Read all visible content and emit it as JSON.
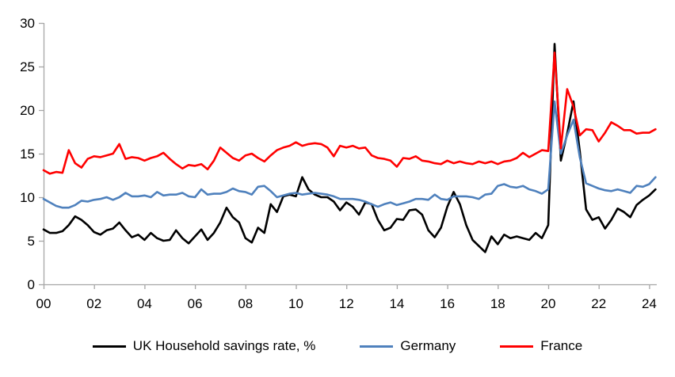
{
  "chart_data": {
    "type": "line",
    "title": "",
    "frequency": "quarterly",
    "start_period": "2000 Q1",
    "end_period": "2024 Q2",
    "grid": false,
    "legend_position": "bottom",
    "axis_color": "#A6A6A6",
    "label_color": "#000000",
    "x_axis": {
      "tick_labels": [
        "00",
        "02",
        "04",
        "06",
        "08",
        "10",
        "12",
        "14",
        "16",
        "18",
        "20",
        "22",
        "24"
      ],
      "tick_years": [
        0,
        2,
        4,
        6,
        8,
        10,
        12,
        14,
        16,
        18,
        20,
        22,
        24
      ],
      "range_years": [
        0,
        24.25
      ]
    },
    "y_axis": {
      "tick_labels": [
        "0",
        "5",
        "10",
        "15",
        "20",
        "25",
        "30"
      ],
      "ticks": [
        0,
        5,
        10,
        15,
        20,
        25,
        30
      ],
      "range": [
        0,
        30
      ]
    },
    "series": [
      {
        "name": "UK Household savings rate, %",
        "color": "#000000",
        "values": [
          6.3,
          5.9,
          5.9,
          6.1,
          6.8,
          7.8,
          7.4,
          6.8,
          6.0,
          5.7,
          6.2,
          6.4,
          7.1,
          6.2,
          5.4,
          5.7,
          5.1,
          5.9,
          5.3,
          5.0,
          5.1,
          6.2,
          5.3,
          4.7,
          5.5,
          6.3,
          5.1,
          5.9,
          7.1,
          8.8,
          7.7,
          7.1,
          5.3,
          4.8,
          6.5,
          5.9,
          9.2,
          8.3,
          10.1,
          10.3,
          10.1,
          12.3,
          10.9,
          10.3,
          10.0,
          10.0,
          9.5,
          8.5,
          9.4,
          8.9,
          8.0,
          9.4,
          9.2,
          7.4,
          6.2,
          6.5,
          7.5,
          7.4,
          8.5,
          8.6,
          8.0,
          6.2,
          5.4,
          6.5,
          8.9,
          10.6,
          9.2,
          6.8,
          5.1,
          4.4,
          3.7,
          5.5,
          4.6,
          5.7,
          5.3,
          5.5,
          5.3,
          5.1,
          5.9,
          5.3,
          6.8,
          27.6,
          14.2,
          17.3,
          21.0,
          15.3,
          8.6,
          7.4,
          7.7,
          6.4,
          7.4,
          8.7,
          8.3,
          7.7,
          9.1,
          9.7,
          10.2,
          10.9
        ]
      },
      {
        "name": "Germany",
        "color": "#4F81BD",
        "values": [
          9.8,
          9.4,
          9.0,
          8.8,
          8.8,
          9.1,
          9.6,
          9.5,
          9.7,
          9.8,
          10.0,
          9.7,
          10.0,
          10.5,
          10.1,
          10.1,
          10.2,
          10.0,
          10.6,
          10.2,
          10.3,
          10.3,
          10.5,
          10.1,
          10.0,
          10.9,
          10.3,
          10.4,
          10.4,
          10.6,
          11.0,
          10.7,
          10.6,
          10.3,
          11.2,
          11.3,
          10.7,
          10.0,
          10.2,
          10.4,
          10.5,
          10.3,
          10.4,
          10.5,
          10.4,
          10.3,
          10.1,
          9.8,
          9.8,
          9.8,
          9.7,
          9.5,
          9.2,
          8.9,
          9.2,
          9.4,
          9.1,
          9.3,
          9.5,
          9.8,
          9.8,
          9.7,
          10.3,
          9.8,
          9.7,
          10.1,
          10.1,
          10.1,
          10.0,
          9.8,
          10.3,
          10.4,
          11.3,
          11.5,
          11.2,
          11.1,
          11.3,
          10.9,
          10.7,
          10.4,
          10.9,
          21.0,
          15.0,
          17.1,
          18.9,
          14.6,
          11.6,
          11.3,
          11.0,
          10.8,
          10.7,
          10.9,
          10.7,
          10.5,
          11.3,
          11.2,
          11.5,
          12.3
        ]
      },
      {
        "name": "France",
        "color": "#FF0000",
        "values": [
          13.1,
          12.7,
          12.9,
          12.8,
          15.4,
          13.9,
          13.4,
          14.4,
          14.7,
          14.6,
          14.8,
          15.0,
          16.1,
          14.4,
          14.6,
          14.5,
          14.2,
          14.5,
          14.7,
          15.1,
          14.4,
          13.8,
          13.3,
          13.7,
          13.6,
          13.8,
          13.2,
          14.2,
          15.7,
          15.1,
          14.5,
          14.2,
          14.8,
          15.0,
          14.5,
          14.1,
          14.8,
          15.4,
          15.7,
          15.9,
          16.3,
          15.9,
          16.1,
          16.2,
          16.1,
          15.7,
          14.7,
          15.9,
          15.7,
          15.9,
          15.6,
          15.7,
          14.8,
          14.5,
          14.4,
          14.2,
          13.5,
          14.5,
          14.4,
          14.7,
          14.2,
          14.1,
          13.9,
          13.8,
          14.2,
          13.9,
          14.1,
          13.9,
          13.8,
          14.1,
          13.9,
          14.1,
          13.8,
          14.1,
          14.2,
          14.5,
          15.1,
          14.6,
          15.0,
          15.4,
          15.3,
          26.6,
          15.6,
          22.4,
          20.4,
          17.1,
          17.8,
          17.7,
          16.4,
          17.4,
          18.6,
          18.2,
          17.7,
          17.7,
          17.3,
          17.4,
          17.4,
          17.8
        ]
      }
    ]
  }
}
